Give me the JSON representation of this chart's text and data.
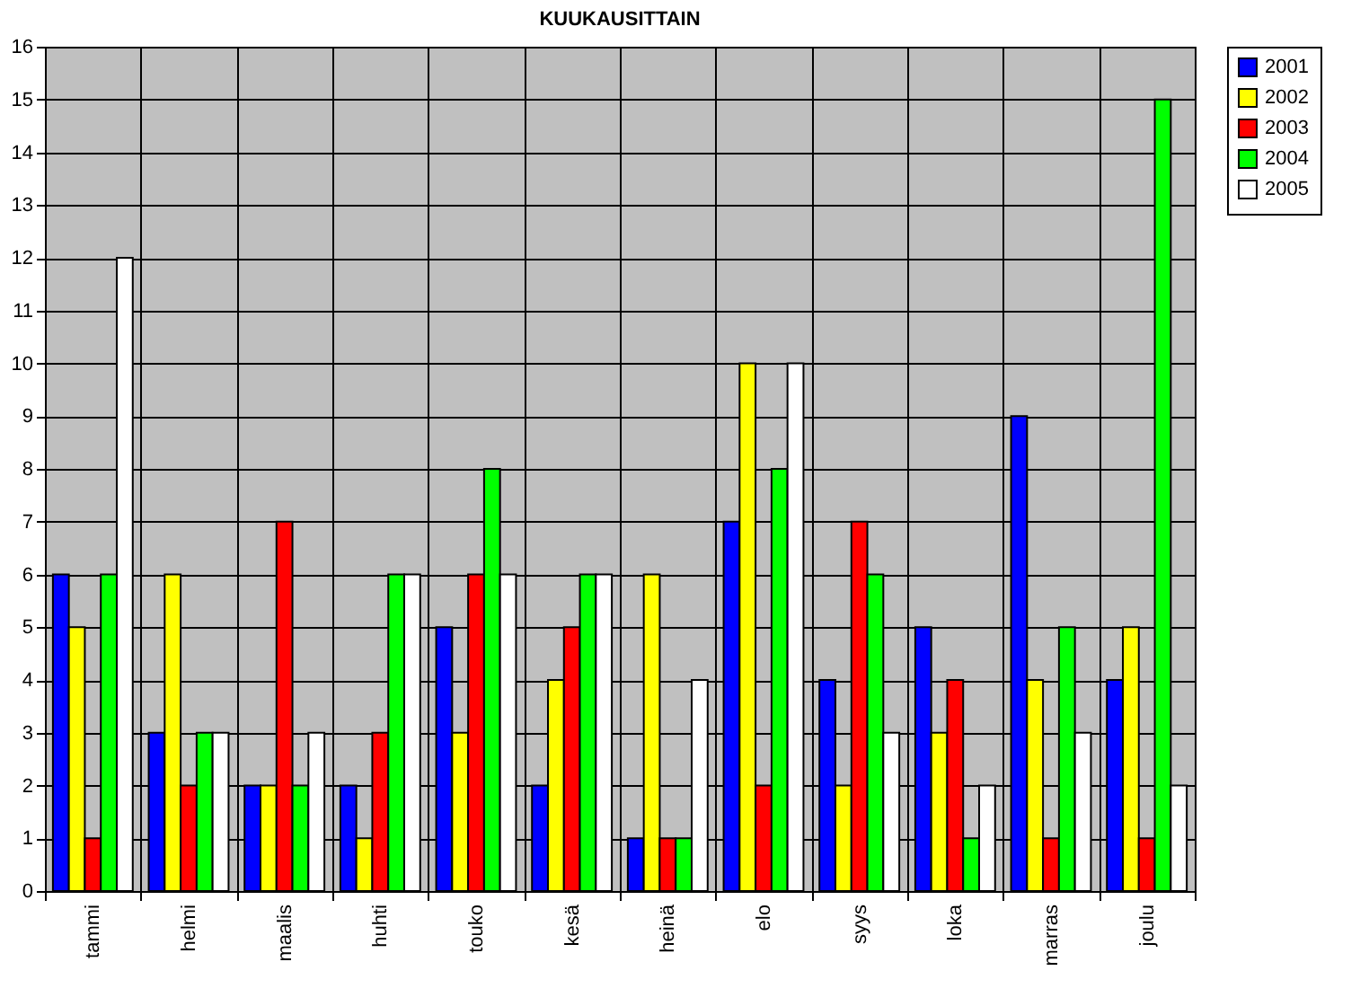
{
  "chart_data": {
    "type": "bar",
    "title": "KUUKAUSITTAIN",
    "categories": [
      "tammi",
      "helmi",
      "maalis",
      "huhti",
      "touko",
      "kesä",
      "heinä",
      "elo",
      "syys",
      "loka",
      "marras",
      "joulu"
    ],
    "series": [
      {
        "name": "2001",
        "color": "#0000ff",
        "values": [
          6,
          3,
          2,
          2,
          5,
          2,
          1,
          7,
          4,
          5,
          9,
          4
        ]
      },
      {
        "name": "2002",
        "color": "#ffff00",
        "values": [
          5,
          6,
          2,
          1,
          3,
          4,
          6,
          10,
          2,
          3,
          4,
          5
        ]
      },
      {
        "name": "2003",
        "color": "#ff0000",
        "values": [
          1,
          2,
          7,
          3,
          6,
          5,
          1,
          2,
          7,
          4,
          1,
          1
        ]
      },
      {
        "name": "2004",
        "color": "#00ff00",
        "values": [
          6,
          3,
          2,
          6,
          8,
          6,
          1,
          8,
          6,
          1,
          5,
          15
        ]
      },
      {
        "name": "2005",
        "color": "#ffffff",
        "values": [
          12,
          3,
          3,
          6,
          6,
          6,
          4,
          10,
          3,
          2,
          3,
          2
        ]
      }
    ],
    "ylim": [
      0,
      16
    ],
    "yticks": [
      0,
      1,
      2,
      3,
      4,
      5,
      6,
      7,
      8,
      9,
      10,
      11,
      12,
      13,
      14,
      15,
      16
    ],
    "grid": true,
    "legend": "right"
  }
}
